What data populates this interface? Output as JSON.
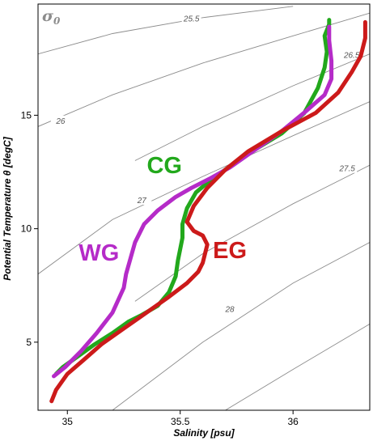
{
  "chart_data": {
    "type": "line",
    "title": "",
    "xlabel": "Salinity [psu]",
    "ylabel": "Potential Temperature θ [degC]",
    "xlim": [
      34.87,
      36.34
    ],
    "ylim": [
      2.0,
      19.9
    ],
    "xticks": [
      {
        "value": 35,
        "label": "35"
      },
      {
        "value": 35.5,
        "label": "35.5"
      },
      {
        "value": 36,
        "label": "36"
      }
    ],
    "yticks": [
      {
        "value": 5,
        "label": "5"
      },
      {
        "value": 10,
        "label": "10"
      },
      {
        "value": 15,
        "label": "15"
      }
    ],
    "grid": false,
    "legend": "none (series labeled inline)",
    "contour_symbol": "σ",
    "contour_symbol_sub": "0",
    "contours": [
      {
        "label": "25.5",
        "points": [
          [
            34.87,
            17.7
          ],
          [
            35.2,
            18.6
          ],
          [
            35.6,
            19.3
          ],
          [
            36.0,
            19.8
          ]
        ],
        "label_at": [
          35.55,
          19.2
        ]
      },
      {
        "label": "26",
        "points": [
          [
            34.87,
            14.5
          ],
          [
            35.2,
            15.9
          ],
          [
            35.6,
            17.3
          ],
          [
            36.0,
            18.5
          ],
          [
            36.34,
            19.5
          ]
        ],
        "label_at": [
          34.97,
          14.7
        ]
      },
      {
        "label": "26.5",
        "points": [
          [
            35.3,
            13.0
          ],
          [
            35.6,
            14.5
          ],
          [
            36.0,
            16.3
          ],
          [
            36.34,
            17.7
          ]
        ],
        "label_at": [
          36.26,
          17.6
        ]
      },
      {
        "label": "27",
        "points": [
          [
            34.87,
            8.0
          ],
          [
            35.2,
            10.4
          ],
          [
            35.6,
            12.3
          ],
          [
            36.0,
            14.1
          ],
          [
            36.34,
            15.6
          ]
        ],
        "label_at": [
          35.33,
          11.2
        ]
      },
      {
        "label": "27.5",
        "points": [
          [
            35.3,
            6.8
          ],
          [
            35.6,
            8.9
          ],
          [
            36.0,
            11.1
          ],
          [
            36.34,
            12.8
          ]
        ],
        "label_at": [
          36.24,
          12.6
        ]
      },
      {
        "label": "28",
        "points": [
          [
            35.2,
            2.0
          ],
          [
            35.6,
            5.0
          ],
          [
            36.0,
            7.6
          ],
          [
            36.34,
            9.4
          ]
        ],
        "label_at": [
          35.72,
          6.4
        ]
      },
      {
        "label": "",
        "points": [
          [
            35.7,
            2.0
          ],
          [
            36.0,
            3.8
          ],
          [
            36.34,
            5.8
          ]
        ]
      }
    ],
    "series": [
      {
        "name": "CG",
        "color": "#22a81c",
        "label_at": [
          35.43,
          12.45
        ],
        "x": [
          34.95,
          34.98,
          35.05,
          35.12,
          35.2,
          35.27,
          35.33,
          35.4,
          35.45,
          35.48,
          35.49,
          35.5,
          35.51,
          35.51,
          35.53,
          35.57,
          35.63,
          35.7,
          35.8,
          35.95,
          36.05,
          36.11,
          36.14,
          36.15,
          36.14,
          36.16,
          36.16
        ],
        "y": [
          3.6,
          3.9,
          4.4,
          4.9,
          5.4,
          5.9,
          6.2,
          6.6,
          7.2,
          7.9,
          8.6,
          9.1,
          9.6,
          10.2,
          10.9,
          11.6,
          12.1,
          12.6,
          13.3,
          14.2,
          15.1,
          16.2,
          17.1,
          17.8,
          18.5,
          19.0,
          19.2
        ]
      },
      {
        "name": "WG",
        "color": "#b52bc8",
        "label_at": [
          35.14,
          8.6
        ],
        "x": [
          34.94,
          34.99,
          35.06,
          35.13,
          35.2,
          35.25,
          35.26,
          35.3,
          35.34,
          35.4,
          35.48,
          35.55,
          35.63,
          35.72,
          35.82,
          35.95,
          36.06,
          36.14,
          36.17,
          36.17,
          36.16,
          36.16
        ],
        "y": [
          3.5,
          3.9,
          4.6,
          5.4,
          6.3,
          7.4,
          8.0,
          9.4,
          10.2,
          10.8,
          11.4,
          11.8,
          12.2,
          12.7,
          13.4,
          14.3,
          15.2,
          15.9,
          16.6,
          17.4,
          18.3,
          18.9
        ]
      },
      {
        "name": "EG",
        "color": "#cc1a1a",
        "label_at": [
          35.72,
          8.7
        ],
        "x": [
          34.93,
          34.95,
          35.0,
          35.07,
          35.15,
          35.25,
          35.35,
          35.45,
          35.53,
          35.58,
          35.6,
          35.61,
          35.62,
          35.6,
          35.56,
          35.53,
          35.56,
          35.62,
          35.7,
          35.8,
          35.95,
          36.1,
          36.2,
          36.26,
          36.3,
          36.32,
          36.32
        ],
        "y": [
          2.4,
          2.9,
          3.6,
          4.2,
          4.9,
          5.6,
          6.3,
          7.0,
          7.6,
          8.1,
          8.5,
          8.9,
          9.3,
          9.7,
          9.9,
          10.3,
          11.0,
          11.8,
          12.6,
          13.4,
          14.3,
          15.1,
          16.0,
          16.9,
          17.6,
          18.4,
          19.1
        ]
      }
    ]
  }
}
